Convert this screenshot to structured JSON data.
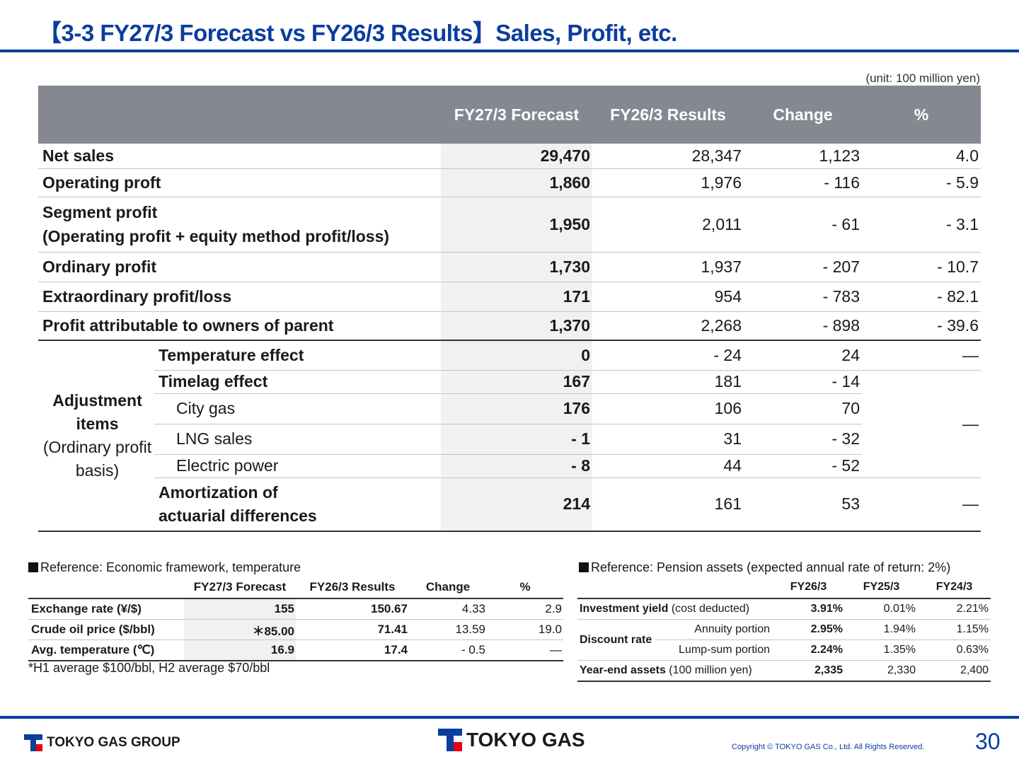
{
  "title": "【3-3 FY27/3 Forecast vs FY26/3 Results】Sales, Profit, etc.",
  "unit": "(unit: 100 million yen)",
  "main_table": {
    "headers": [
      "",
      "FY27/3 Forecast",
      "FY26/3 Results",
      "Change",
      "%"
    ],
    "rows": [
      {
        "label": "Net sales",
        "fc": "29,470",
        "res": "28,347",
        "chg": "1,123",
        "pct": "4.0"
      },
      {
        "label": "Operating proft",
        "fc": "1,860",
        "res": "1,976",
        "chg": "- 116",
        "pct": "- 5.9"
      },
      {
        "label": "Segment profit",
        "label2": "(Operating profit + equity method profit/loss)",
        "fc": "1,950",
        "res": "2,011",
        "chg": "- 61",
        "pct": "- 3.1"
      },
      {
        "label": "Ordinary profit",
        "fc": "1,730",
        "res": "1,937",
        "chg": "- 207",
        "pct": "- 10.7"
      },
      {
        "label": "Extraordinary profit/loss",
        "fc": "171",
        "res": "954",
        "chg": "- 783",
        "pct": "- 82.1"
      },
      {
        "label": "Profit attributable to owners of parent",
        "fc": "1,370",
        "res": "2,268",
        "chg": "- 898",
        "pct": "- 39.6"
      }
    ],
    "adjustment": {
      "group_label_bold": "Adjustment items",
      "group_label_normal": "(Ordinary profit basis)",
      "rows": [
        {
          "label": "Temperature effect",
          "fc": "0",
          "res": "- 24",
          "chg": "24",
          "pct": "—"
        },
        {
          "label": "Timelag effect",
          "fc": "167",
          "res": "181",
          "chg": "- 14"
        },
        {
          "label": "City gas",
          "fc": "176",
          "res": "106",
          "chg": "70"
        },
        {
          "label": "LNG sales",
          "fc": "- 1",
          "res": "31",
          "chg": "- 32"
        },
        {
          "label": "Electric power",
          "fc": "- 8",
          "res": "44",
          "chg": "- 52"
        },
        {
          "label": "Amortization of",
          "label2": "actuarial differences",
          "fc": "214",
          "res": "161",
          "chg": "53",
          "pct": "—"
        }
      ],
      "timelag_pct": "—"
    }
  },
  "ref_econ": {
    "title": "Reference: Economic framework, temperature",
    "headers": [
      "",
      "FY27/3 Forecast",
      "FY26/3 Results",
      "Change",
      "%"
    ],
    "rows": [
      {
        "label": "Exchange rate (¥/$)",
        "fc": "155",
        "res": "150.67",
        "chg": "4.33",
        "pct": "2.9"
      },
      {
        "label": "Crude oil price ($/bbl)",
        "fc": "＊85.00",
        "res": "71.41",
        "chg": "13.59",
        "pct": "19.0"
      },
      {
        "label": "Avg. temperature (℃)",
        "fc": "16.9",
        "res": "17.4",
        "chg": "- 0.5",
        "pct": "—"
      }
    ],
    "note": "*H1 average $100/bbl, H2 average $70/bbl"
  },
  "ref_pension": {
    "title": "Reference: Pension assets (expected annual rate of return: 2%)",
    "headers": [
      "FY26/3",
      "FY25/3",
      "FY24/3"
    ],
    "rows": [
      {
        "label_bold": "Investment yield",
        "label_normal": " (cost deducted)",
        "v1": "3.91%",
        "v2": "0.01%",
        "v3": "2.21%"
      },
      {
        "group": "Discount rate",
        "sub": "Annuity portion",
        "v1": "2.95%",
        "v2": "1.94%",
        "v3": "1.15%"
      },
      {
        "sub": "Lump-sum portion",
        "v1": "2.24%",
        "v2": "1.35%",
        "v3": "0.63%"
      },
      {
        "label_bold": "Year-end assets",
        "label_normal": " (100 million yen)",
        "v1": "2,335",
        "v2": "2,330",
        "v3": "2,400"
      }
    ]
  },
  "footer": {
    "logo_left": "TOKYO GAS GROUP",
    "logo_center": "TOKYO GAS",
    "copyright": "Copyright © TOKYO GAS Co., Ltd. All Rights Reserved.",
    "page_number": "30"
  },
  "colors": {
    "brand_blue": "#0b3d9e",
    "header_gray": "#858890",
    "logo_red": "#e60012"
  }
}
